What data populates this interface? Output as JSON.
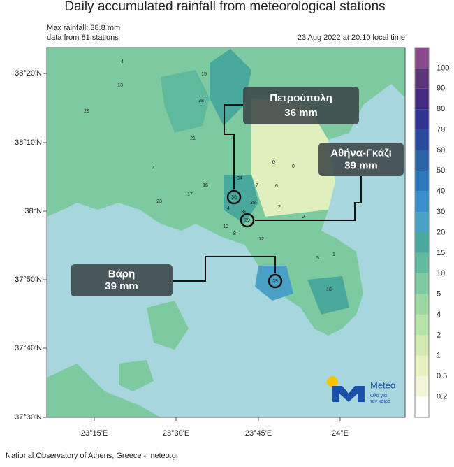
{
  "title": "Daily accumulated rainfall from meteorological stations",
  "info": {
    "max": "Max rainfall: 38.8 mm",
    "stations": "data from 81 stations",
    "time": "23 Aug 2022 at 20:10 local time"
  },
  "lat_labels": [
    "38°20'N",
    "38°10'N",
    "38°N",
    "37°50'N",
    "37°40'N",
    "37°30'N"
  ],
  "lon_labels": [
    "23°15'E",
    "23°30'E",
    "23°45'E",
    "24°E"
  ],
  "colorbar": {
    "ticks": [
      0.2,
      0.5,
      1,
      2,
      4,
      5,
      10,
      15,
      20,
      30,
      40,
      50,
      60,
      70,
      80,
      90,
      100
    ],
    "colors": [
      "#ffffff",
      "#f3f5da",
      "#e7f1c0",
      "#d2eab0",
      "#b7e2a8",
      "#9dd7a4",
      "#7dc9a0",
      "#5fb99c",
      "#48a89c",
      "#4aa0c4",
      "#3b8fcc",
      "#2c78bd",
      "#2a63a8",
      "#2a4c9e",
      "#2f3590",
      "#432a80",
      "#5c3478",
      "#8a4a8c"
    ]
  },
  "stations": [
    "4",
    "15",
    "13",
    "29",
    "38",
    "21",
    "4",
    "16",
    "17",
    "23",
    "34",
    "7",
    "4",
    "28",
    "31",
    "10",
    "8",
    "12",
    "5",
    "1",
    "18",
    "0",
    "0",
    "0",
    "2",
    "6"
  ],
  "callouts": [
    {
      "name": "Πετρούπολη",
      "value": "36 mm",
      "station": "36"
    },
    {
      "name": "Αθήνα-Γκάζι",
      "value": "39 mm",
      "station": "39"
    },
    {
      "name": "Βάρη",
      "value": "39 mm",
      "station": "39"
    }
  ],
  "logo": {
    "name": "Meteo",
    "tagline": [
      "Όλα για",
      "τον καιρό"
    ]
  },
  "footer": "National Observatory of Athens, Greece - meteo.gr"
}
